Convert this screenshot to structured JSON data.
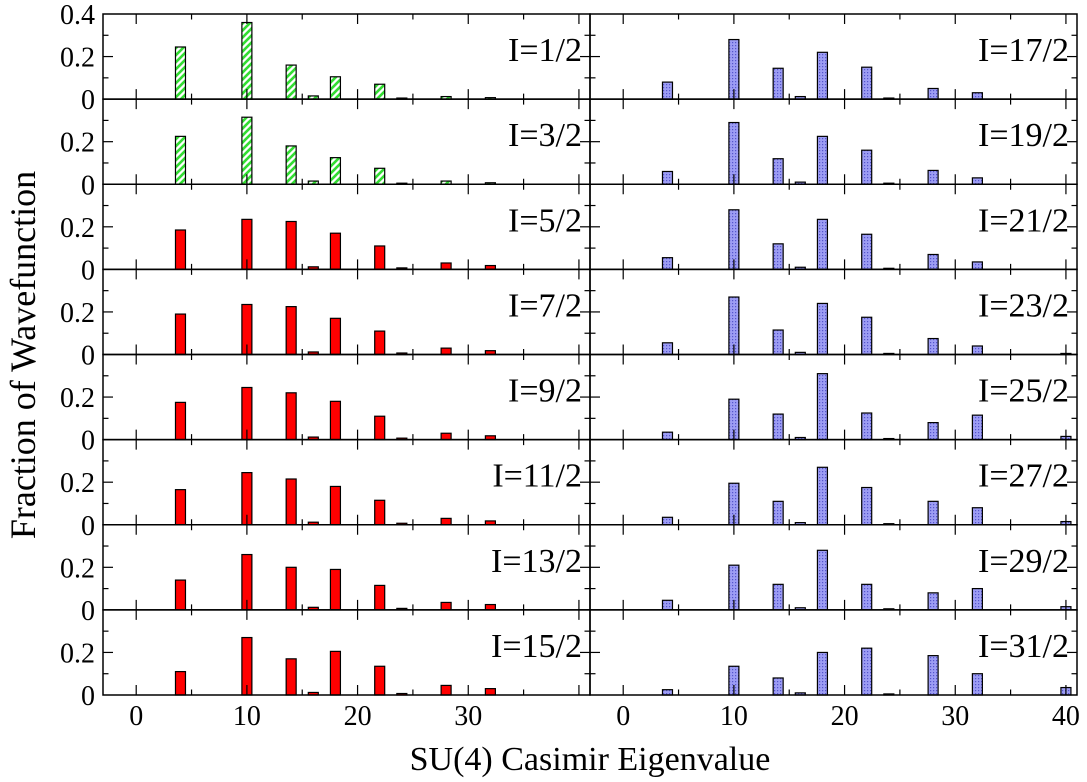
{
  "figure": {
    "ylabel": "Fraction of Wavefunction",
    "xlabel": "SU(4) Casimir Eigenvalue"
  },
  "colors": {
    "hatched_green": "#33dd33",
    "solid_red": "#ff0000",
    "dotted_blue": "#7b7bee"
  },
  "axes": {
    "xlim": [
      -3,
      41
    ],
    "ylim": [
      0,
      0.4
    ],
    "left_xticks": [
      "0",
      "10",
      "20",
      "30"
    ],
    "right_xticks": [
      "0",
      "10",
      "20",
      "30",
      "40"
    ],
    "top_yticks": [
      "0",
      "0.2",
      "0.4"
    ],
    "yticks": [
      "0",
      "0.2"
    ]
  },
  "chart_data": {
    "type": "bar",
    "layout": "small multiples, 8 rows x 2 columns, shared axes",
    "xlabel": "SU(4) Casimir Eigenvalue",
    "ylabel": "Fraction of Wavefunction",
    "xlim": [
      -3,
      41
    ],
    "ylim": [
      0,
      0.4
    ],
    "x": [
      4,
      10,
      14,
      16,
      18,
      22,
      24,
      28,
      32,
      40
    ],
    "panels": [
      {
        "label": "I=1/2",
        "style": "hatched_green",
        "values": [
          0.245,
          0.36,
          0.16,
          0.015,
          0.105,
          0.07,
          0.005,
          0.012,
          0.007,
          0
        ]
      },
      {
        "label": "I=3/2",
        "style": "hatched_green",
        "values": [
          0.225,
          0.315,
          0.18,
          0.015,
          0.125,
          0.075,
          0.005,
          0.015,
          0.007,
          0
        ]
      },
      {
        "label": "I=5/2",
        "style": "solid_red",
        "values": [
          0.185,
          0.235,
          0.225,
          0.012,
          0.17,
          0.11,
          0.007,
          0.03,
          0.018,
          0
        ]
      },
      {
        "label": "I=7/2",
        "style": "solid_red",
        "values": [
          0.19,
          0.235,
          0.225,
          0.012,
          0.17,
          0.11,
          0.007,
          0.03,
          0.018,
          0
        ]
      },
      {
        "label": "I=9/2",
        "style": "solid_red",
        "values": [
          0.175,
          0.245,
          0.22,
          0.012,
          0.18,
          0.11,
          0.007,
          0.03,
          0.018,
          0
        ]
      },
      {
        "label": "I=11/2",
        "style": "solid_red",
        "values": [
          0.165,
          0.245,
          0.215,
          0.012,
          0.18,
          0.115,
          0.007,
          0.03,
          0.018,
          0
        ]
      },
      {
        "label": "I=13/2",
        "style": "solid_red",
        "values": [
          0.14,
          0.26,
          0.2,
          0.012,
          0.19,
          0.115,
          0.007,
          0.035,
          0.025,
          0
        ]
      },
      {
        "label": "I=15/2",
        "style": "solid_red",
        "values": [
          0.11,
          0.27,
          0.17,
          0.012,
          0.205,
          0.135,
          0.007,
          0.045,
          0.03,
          0
        ]
      },
      {
        "label": "I=17/2",
        "style": "dotted_blue",
        "values": [
          0.08,
          0.28,
          0.145,
          0.012,
          0.22,
          0.15,
          0.005,
          0.05,
          0.03,
          0
        ]
      },
      {
        "label": "I=19/2",
        "style": "dotted_blue",
        "values": [
          0.06,
          0.29,
          0.12,
          0.01,
          0.225,
          0.16,
          0.005,
          0.065,
          0.03,
          0
        ]
      },
      {
        "label": "I=21/2",
        "style": "dotted_blue",
        "values": [
          0.055,
          0.28,
          0.12,
          0.01,
          0.235,
          0.165,
          0.005,
          0.07,
          0.035,
          0
        ]
      },
      {
        "label": "I=23/2",
        "style": "dotted_blue",
        "values": [
          0.055,
          0.27,
          0.115,
          0.01,
          0.24,
          0.175,
          0.005,
          0.075,
          0.04,
          0.005
        ]
      },
      {
        "label": "I=25/2",
        "style": "dotted_blue",
        "values": [
          0.035,
          0.19,
          0.12,
          0.01,
          0.31,
          0.125,
          0.005,
          0.08,
          0.115,
          0.015
        ]
      },
      {
        "label": "I=27/2",
        "style": "dotted_blue",
        "values": [
          0.035,
          0.195,
          0.11,
          0.01,
          0.27,
          0.175,
          0.005,
          0.11,
          0.08,
          0.015
        ]
      },
      {
        "label": "I=29/2",
        "style": "dotted_blue",
        "values": [
          0.045,
          0.21,
          0.12,
          0.01,
          0.28,
          0.12,
          0.005,
          0.08,
          0.1,
          0.015
        ]
      },
      {
        "label": "I=31/2",
        "style": "dotted_blue",
        "values": [
          0.025,
          0.135,
          0.08,
          0.01,
          0.2,
          0.22,
          0.005,
          0.185,
          0.1,
          0.035
        ]
      }
    ]
  }
}
